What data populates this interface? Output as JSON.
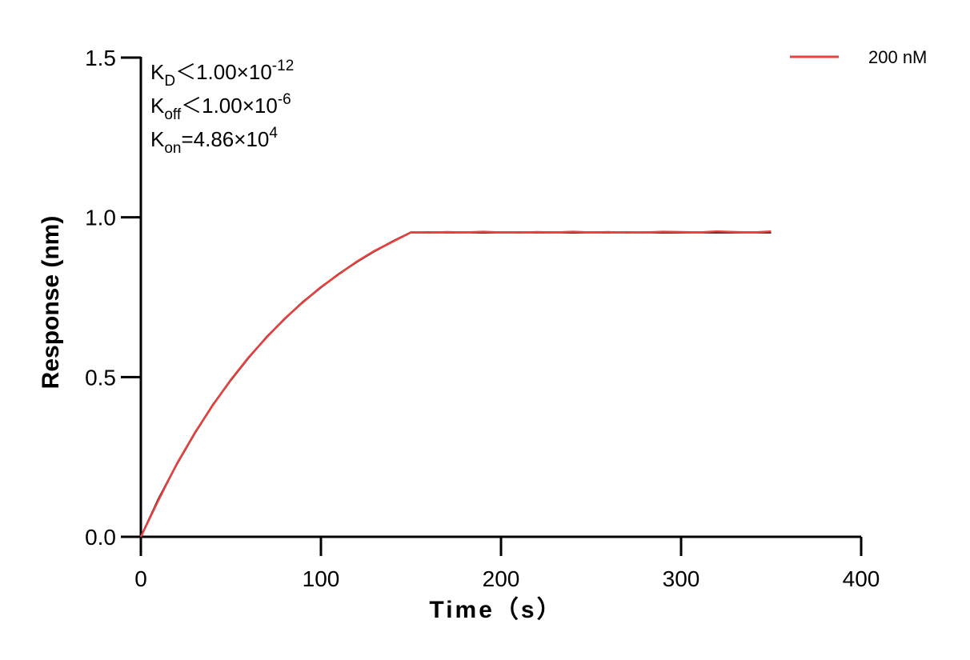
{
  "chart_data": {
    "type": "line",
    "annotations": [
      {
        "main": "K",
        "sub": "D",
        "rest": "＜1.00×10",
        "sup": "-12"
      },
      {
        "main": "K",
        "sub": "off",
        "rest": "＜1.00×10",
        "sup": "-6"
      },
      {
        "main": "K",
        "sub": "on",
        "rest": "=4.86×10",
        "sup": "4"
      }
    ],
    "x_label": "Time（s）",
    "y_label": "Response (nm)",
    "x": [
      0,
      10,
      20,
      30,
      40,
      50,
      60,
      70,
      80,
      90,
      100,
      110,
      120,
      130,
      140,
      150,
      160,
      170,
      180,
      190,
      200,
      210,
      220,
      230,
      240,
      250,
      260,
      270,
      280,
      290,
      300,
      310,
      320,
      330,
      340,
      350
    ],
    "series": [
      {
        "color": "#000000",
        "values": [
          0,
          0.12,
          0.228,
          0.325,
          0.413,
          0.491,
          0.562,
          0.626,
          0.683,
          0.735,
          0.781,
          0.823,
          0.861,
          0.895,
          0.925,
          0.953,
          0.953,
          0.953,
          0.953,
          0.953,
          0.953,
          0.953,
          0.953,
          0.953,
          0.953,
          0.953,
          0.953,
          0.953,
          0.953,
          0.953,
          0.953,
          0.953,
          0.953,
          0.953,
          0.953,
          0.953
        ]
      },
      {
        "name": "200 nM",
        "color": "#e8413f",
        "values": [
          0,
          0.117,
          0.229,
          0.326,
          0.412,
          0.492,
          0.563,
          0.625,
          0.684,
          0.734,
          0.782,
          0.822,
          0.862,
          0.896,
          0.924,
          0.953,
          0.952,
          0.954,
          0.953,
          0.955,
          0.953,
          0.952,
          0.954,
          0.953,
          0.955,
          0.953,
          0.954,
          0.952,
          0.953,
          0.955,
          0.954,
          0.953,
          0.956,
          0.954,
          0.953,
          0.956
        ]
      }
    ],
    "xlim": [
      0,
      400
    ],
    "xticks": [
      0,
      100,
      200,
      300,
      400
    ],
    "ylim": [
      0,
      1.5
    ],
    "yticks": [
      {
        "value": 0,
        "label": "0.0"
      },
      {
        "value": 0.5,
        "label": "0.5"
      },
      {
        "value": 1,
        "label": "1.0"
      },
      {
        "value": 1.5,
        "label": "1.5"
      }
    ],
    "legend": "top-right"
  }
}
